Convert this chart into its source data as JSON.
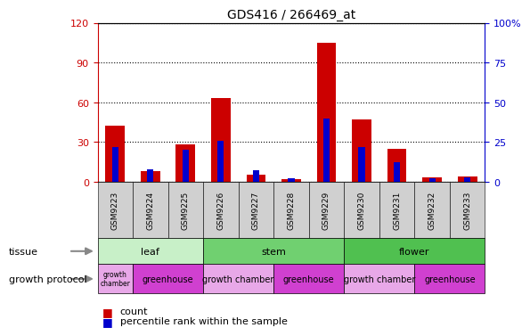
{
  "title": "GDS416 / 266469_at",
  "samples": [
    "GSM9223",
    "GSM9224",
    "GSM9225",
    "GSM9226",
    "GSM9227",
    "GSM9228",
    "GSM9229",
    "GSM9230",
    "GSM9231",
    "GSM9232",
    "GSM9233"
  ],
  "counts": [
    42,
    8,
    28,
    63,
    5,
    2,
    105,
    47,
    25,
    3,
    4
  ],
  "percentiles": [
    22,
    8,
    20,
    26,
    7,
    2,
    40,
    22,
    12,
    2,
    3
  ],
  "ylim_left": [
    0,
    120
  ],
  "ylim_right": [
    0,
    100
  ],
  "yticks_left": [
    0,
    30,
    60,
    90,
    120
  ],
  "yticks_right": [
    0,
    25,
    50,
    75,
    100
  ],
  "tissue_groups": [
    {
      "label": "leaf",
      "start": 0,
      "end": 3,
      "color": "#c8f0c8"
    },
    {
      "label": "stem",
      "start": 3,
      "end": 7,
      "color": "#70d070"
    },
    {
      "label": "flower",
      "start": 7,
      "end": 11,
      "color": "#50c050"
    }
  ],
  "growth_protocol_groups": [
    {
      "label": "growth\nchamber",
      "start": 0,
      "end": 1,
      "color": "#e8a8e8"
    },
    {
      "label": "greenhouse",
      "start": 1,
      "end": 3,
      "color": "#d040d0"
    },
    {
      "label": "growth chamber",
      "start": 3,
      "end": 5,
      "color": "#e8a8e8"
    },
    {
      "label": "greenhouse",
      "start": 5,
      "end": 7,
      "color": "#d040d0"
    },
    {
      "label": "growth chamber",
      "start": 7,
      "end": 9,
      "color": "#e8a8e8"
    },
    {
      "label": "greenhouse",
      "start": 9,
      "end": 11,
      "color": "#d040d0"
    }
  ],
  "bar_color_count": "#cc0000",
  "bar_color_pct": "#0000cc",
  "grid_color": "black",
  "bg_color": "#ffffff",
  "col_bg_color": "#d0d0d0",
  "legend_count": "count",
  "legend_pct": "percentile rank within the sample"
}
